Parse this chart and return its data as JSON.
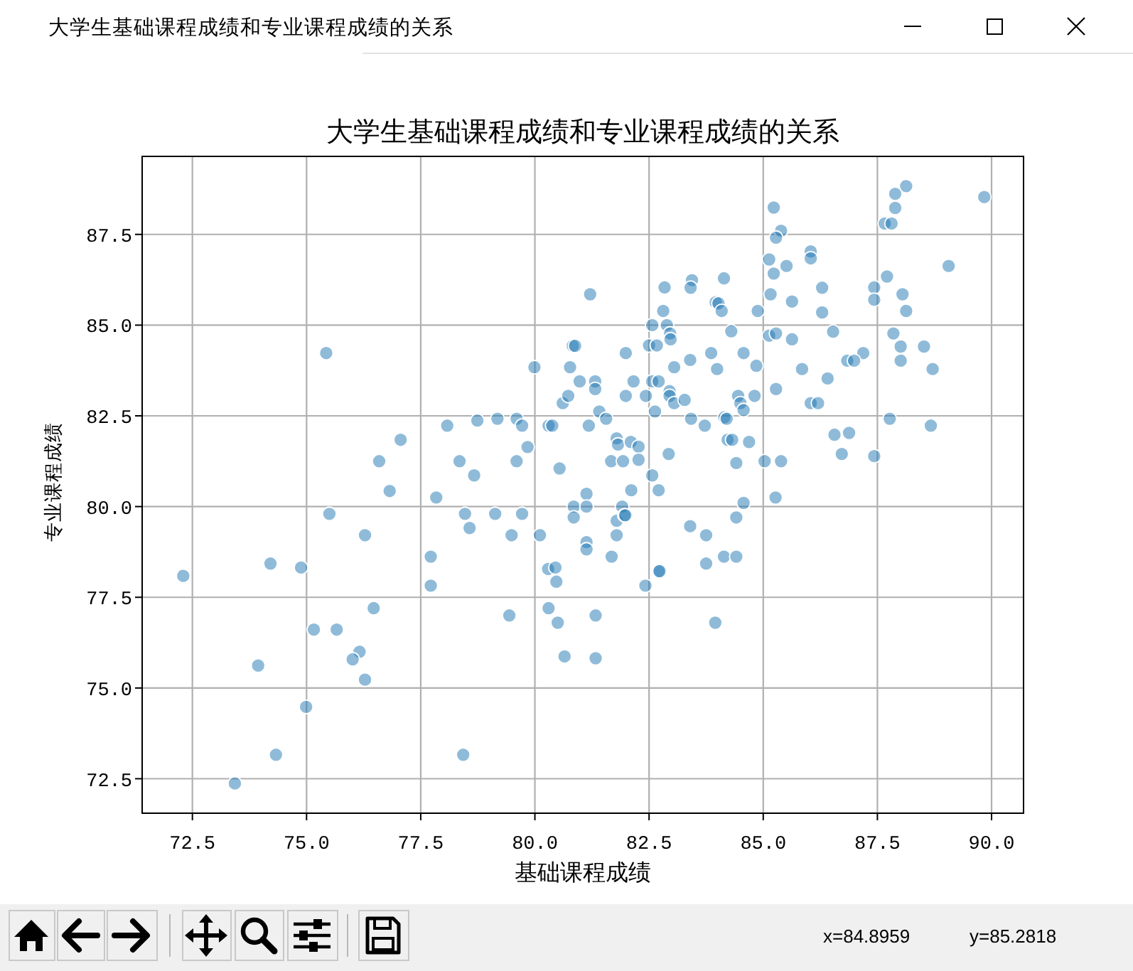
{
  "chart_data": {
    "type": "scatter",
    "title": "大学生基础课程成绩和专业课程成绩的关系",
    "xlabel": "基础课程成绩",
    "ylabel": "专业课程成绩",
    "color": "#1f77b4",
    "marker": "circle",
    "grid": true,
    "xlim": [
      71.4,
      90.7
    ],
    "ylim": [
      71.55,
      89.65
    ],
    "xticks": [
      72.5,
      {
        "value": 75,
        "label": "75.0"
      },
      77.5,
      {
        "value": 80,
        "label": "80.0"
      },
      82.5,
      {
        "value": 85,
        "label": "85.0"
      },
      87.5,
      {
        "value": 90,
        "label": "90.0"
      }
    ],
    "yticks": [
      72.5,
      {
        "value": 75,
        "label": "75.0"
      },
      77.5,
      {
        "value": 80,
        "label": "80.0"
      },
      82.5,
      {
        "value": 85,
        "label": "85.0"
      },
      87.5
    ],
    "annotations": [
      "x=84.8959",
      "y=85.2818"
    ],
    "x": [
      75.43,
      79.99,
      80.61,
      78.08,
      78.74,
      79.18,
      79.6,
      79.72,
      80.3,
      80.38,
      77.06,
      76.59,
      78.35,
      79.6,
      79.84,
      78.67,
      80.54,
      89.84,
      88.13,
      87.89,
      87.89,
      87.66,
      87.81,
      85.23,
      85.39,
      85.28,
      86.04,
      86.04,
      85.13,
      85.51,
      85.23,
      89.06,
      87.71,
      87.43,
      87.43,
      88.05,
      88.13,
      86.29,
      86.29,
      85.63,
      85.16,
      84.88,
      84.14,
      83.44,
      83.41,
      82.84,
      83.96,
      84.02,
      84.09,
      82.81,
      81.21,
      82.57,
      82.89,
      82.96,
      82.97,
      84.3,
      85.13,
      85.28,
      85.63,
      86.53,
      87.85,
      88.01,
      88.52,
      88.01,
      88.71,
      87.19,
      86.84,
      86.99,
      85.85,
      86.41,
      85.28,
      86.04,
      86.2,
      87.77,
      88.67,
      86.56,
      86.88,
      86.72,
      87.43,
      85.39,
      85.03,
      84.57,
      84.85,
      83.86,
      83.99,
      83.4,
      83.05,
      82.5,
      82.67,
      81.99,
      80.83,
      80.88,
      80.77,
      80.98,
      81.32,
      81.32,
      80.73,
      81.41,
      81.56,
      81.18,
      82.16,
      81.99,
      82.43,
      82.57,
      82.71,
      82.95,
      82.95,
      83.05,
      83.28,
      82.63,
      83.42,
      83.72,
      84.15,
      84.2,
      84.45,
      84.5,
      84.57,
      84.81,
      81.79,
      81.82,
      82.1,
      82.27,
      81.67,
      81.93,
      82.27,
      82.93,
      84.22,
      84.32,
      84.69,
      84.41,
      82.57,
      76.82,
      77.84,
      75.5,
      76.28,
      78.47,
      79.13,
      79.72,
      78.57,
      79.49,
      80.11,
      77.72,
      77.72,
      72.3,
      74.21,
      74.88,
      76.47,
      75.16,
      75.66,
      76.16,
      76.01,
      76.28,
      73.94,
      74.99,
      74.33,
      73.43,
      78.43,
      79.44,
      80.3,
      80.5,
      80.65,
      80.29,
      80.45,
      80.47,
      81.13,
      82.11,
      82.71,
      80.85,
      81.13,
      80.85,
      81.91,
      81.79,
      81.96,
      81.98,
      81.79,
      81.13,
      81.13,
      81.68,
      82.71,
      82.73,
      82.42,
      83.4,
      83.75,
      84.41,
      84.57,
      85.27,
      83.75,
      84.14,
      84.41,
      81.33,
      81.33,
      83.95
    ],
    "values": [
      84.23,
      83.84,
      82.85,
      82.23,
      82.37,
      82.42,
      82.42,
      82.23,
      82.23,
      82.23,
      81.84,
      81.25,
      81.25,
      81.25,
      81.64,
      80.86,
      81.05,
      88.53,
      88.83,
      88.62,
      88.23,
      87.8,
      87.8,
      88.24,
      87.6,
      87.41,
      87.03,
      86.84,
      86.81,
      86.63,
      86.42,
      86.63,
      86.34,
      86.04,
      85.7,
      85.85,
      85.39,
      86.03,
      85.35,
      85.65,
      85.85,
      85.39,
      86.29,
      86.24,
      86.03,
      86.04,
      85.63,
      85.6,
      85.39,
      85.39,
      85.85,
      85.0,
      85.0,
      84.77,
      84.61,
      84.83,
      84.71,
      84.77,
      84.61,
      84.82,
      84.77,
      84.41,
      84.41,
      84.02,
      83.79,
      84.23,
      84.02,
      84.02,
      83.79,
      83.53,
      83.24,
      82.85,
      82.85,
      82.42,
      82.23,
      81.98,
      82.03,
      81.45,
      81.39,
      81.25,
      81.25,
      84.23,
      83.88,
      84.23,
      83.79,
      84.04,
      83.84,
      84.44,
      84.44,
      84.23,
      84.43,
      84.43,
      83.84,
      83.45,
      83.45,
      83.24,
      83.05,
      82.62,
      82.42,
      82.23,
      83.45,
      83.05,
      83.05,
      83.45,
      83.45,
      83.18,
      83.05,
      82.85,
      82.94,
      82.62,
      82.42,
      82.23,
      82.46,
      82.42,
      83.05,
      82.85,
      82.66,
      83.05,
      81.88,
      81.71,
      81.78,
      81.65,
      81.25,
      81.25,
      81.29,
      81.45,
      81.84,
      81.84,
      81.78,
      81.2,
      80.86,
      80.43,
      80.25,
      79.8,
      79.21,
      79.8,
      79.8,
      79.8,
      79.41,
      79.21,
      79.21,
      78.62,
      77.82,
      78.09,
      78.43,
      78.32,
      77.2,
      76.61,
      76.61,
      76.0,
      75.79,
      75.23,
      75.62,
      74.48,
      73.16,
      72.37,
      73.16,
      77.0,
      77.2,
      76.8,
      75.87,
      78.28,
      78.32,
      77.93,
      80.35,
      80.45,
      80.45,
      80.0,
      80.0,
      79.7,
      80.0,
      79.61,
      79.76,
      79.76,
      79.21,
      79.02,
      78.82,
      78.62,
      78.22,
      78.22,
      77.82,
      79.46,
      79.21,
      79.7,
      80.1,
      80.25,
      78.43,
      78.62,
      78.62,
      77.0,
      75.82,
      76.8
    ]
  }
}
